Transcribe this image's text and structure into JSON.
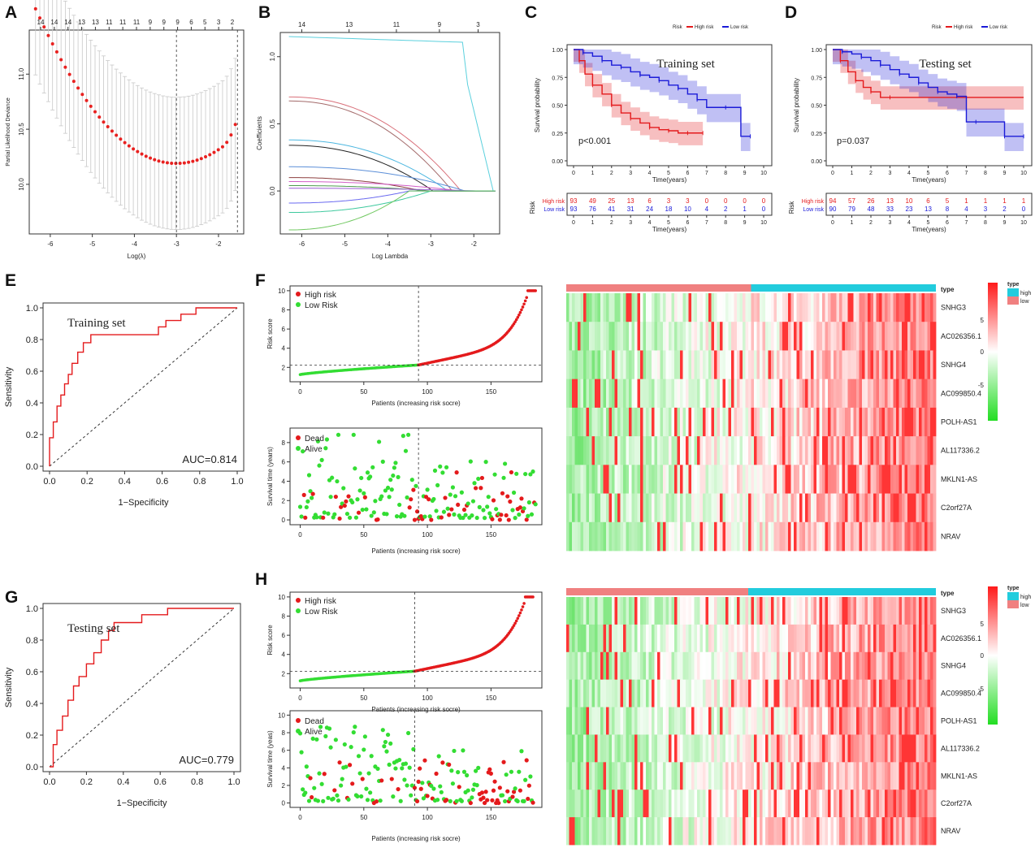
{
  "figure": {
    "panel_labels": [
      "A",
      "B",
      "C",
      "D",
      "E",
      "F",
      "G",
      "H"
    ]
  },
  "chart_data": [
    {
      "id": "A",
      "type": "scatter",
      "xlabel": "Log(λ)",
      "ylabel": "Partial Likelihood Deviance",
      "xlim": [
        -6.5,
        -1.4
      ],
      "ylim": [
        9.55,
        11.4
      ],
      "xticks": [
        -6,
        -5,
        -4,
        -3,
        -2
      ],
      "yticks": [
        10.0,
        10.5,
        11.0
      ],
      "top_ticks": [
        "14",
        "14",
        "14",
        "13",
        "13",
        "11",
        "11",
        "11",
        "9",
        "9",
        "9",
        "6",
        "5",
        "3",
        "2"
      ],
      "vlines": [
        -3.0,
        -1.55
      ],
      "series": [
        {
          "name": "mean deviance",
          "color": "#e8201f"
        }
      ],
      "note": "red dots with grey error bars, U-shaped curve min ≈10.19 at log(λ)≈-3"
    },
    {
      "id": "B",
      "type": "line",
      "xlabel": "Log Lambda",
      "ylabel": "Coefficients",
      "xlim": [
        -6.5,
        -1.4
      ],
      "ylim": [
        -0.32,
        1.18
      ],
      "xticks": [
        -6,
        -5,
        -4,
        -3,
        -2
      ],
      "yticks": [
        0.0,
        0.5,
        1.0
      ],
      "top_ticks": [
        "14",
        "13",
        "11",
        "9",
        "3"
      ],
      "series": [
        {
          "name": "c1",
          "color": "#5bd0dd",
          "start": 1.15
        },
        {
          "name": "c2",
          "color": "#d9707a",
          "start": 0.7
        },
        {
          "name": "c3",
          "color": "#a36a6a",
          "start": 0.67
        },
        {
          "name": "c4",
          "color": "#4db7e0",
          "start": 0.38
        },
        {
          "name": "c5",
          "color": "#222222",
          "start": 0.34
        },
        {
          "name": "c6",
          "color": "#5c8fd8",
          "start": 0.18
        },
        {
          "name": "c7",
          "color": "#8d3f3f",
          "start": 0.1
        },
        {
          "name": "c8",
          "color": "#d25ec7",
          "start": 0.07
        },
        {
          "name": "c9",
          "color": "#4d9a4d",
          "start": 0.04
        },
        {
          "name": "c10",
          "color": "#9a5fd4",
          "start": 0.02
        },
        {
          "name": "c11",
          "color": "#6a6af0",
          "start": -0.09
        },
        {
          "name": "c12",
          "color": "#3ec99e",
          "start": -0.16
        },
        {
          "name": "c13",
          "color": "#70c860",
          "start": -0.29
        }
      ]
    },
    {
      "id": "C",
      "type": "line",
      "title": "Training set",
      "legend_title": "Risk",
      "legend": [
        "High risk",
        "Low risk"
      ],
      "xlabel": "Time(years)",
      "ylabel": "Survival probability",
      "xticks": [
        "0",
        "1",
        "2",
        "3",
        "4",
        "5",
        "6",
        "7",
        "8",
        "9",
        "10"
      ],
      "yticks": [
        "0.00",
        "0.25",
        "0.50",
        "0.75",
        "1.00"
      ],
      "pvalue": "p<0.001",
      "series": [
        {
          "name": "High risk",
          "color": "#e41a1c",
          "x": [
            0,
            0.3,
            0.6,
            1,
            1.5,
            2,
            2.5,
            3,
            3.5,
            4,
            4.5,
            5,
            5.5,
            6,
            6.5,
            6.8
          ],
          "y": [
            1,
            0.9,
            0.78,
            0.68,
            0.6,
            0.5,
            0.43,
            0.38,
            0.34,
            0.3,
            0.28,
            0.27,
            0.25,
            0.25,
            0.25,
            0.25
          ]
        },
        {
          "name": "Low risk",
          "color": "#1b1bd8",
          "x": [
            0,
            0.5,
            1,
            1.5,
            2,
            2.5,
            3,
            3.5,
            4,
            4.5,
            5,
            5.5,
            6,
            6.5,
            7,
            8,
            8.8,
            9.3
          ],
          "y": [
            1,
            0.97,
            0.94,
            0.9,
            0.86,
            0.84,
            0.8,
            0.77,
            0.75,
            0.72,
            0.68,
            0.65,
            0.6,
            0.55,
            0.48,
            0.48,
            0.22,
            0.22
          ]
        }
      ],
      "risk_table": {
        "label": "Risk",
        "xlabel": "Time(years)",
        "rows": [
          {
            "name": "High risk",
            "color": "#e41a1c",
            "values": [
              "93",
              "49",
              "25",
              "13",
              "6",
              "3",
              "3",
              "0",
              "0",
              "0",
              "0"
            ]
          },
          {
            "name": "Low risk",
            "color": "#1b1bd8",
            "values": [
              "93",
              "76",
              "41",
              "31",
              "24",
              "18",
              "10",
              "4",
              "2",
              "1",
              "0"
            ]
          }
        ]
      }
    },
    {
      "id": "D",
      "type": "line",
      "title": "Testing set",
      "legend_title": "Risk",
      "legend": [
        "High risk",
        "Low risk"
      ],
      "xlabel": "Time(years)",
      "ylabel": "Survival probability",
      "xticks": [
        "0",
        "1",
        "2",
        "3",
        "4",
        "5",
        "6",
        "7",
        "8",
        "9",
        "10"
      ],
      "yticks": [
        "0.00",
        "0.25",
        "0.50",
        "0.75",
        "1.00"
      ],
      "pvalue": "p=0.037",
      "series": [
        {
          "name": "High risk",
          "color": "#e41a1c",
          "x": [
            0,
            0.4,
            0.8,
            1.2,
            1.6,
            2,
            2.5,
            3,
            10
          ],
          "y": [
            1,
            0.9,
            0.8,
            0.72,
            0.66,
            0.62,
            0.57,
            0.57,
            0.57
          ]
        },
        {
          "name": "Low risk",
          "color": "#1b1bd8",
          "x": [
            0,
            0.5,
            1,
            1.5,
            2,
            2.5,
            3,
            3.5,
            4,
            4.5,
            5,
            5.5,
            6,
            6.5,
            7,
            7.5,
            8,
            9,
            9.5,
            10
          ],
          "y": [
            1,
            0.98,
            0.96,
            0.93,
            0.9,
            0.86,
            0.82,
            0.78,
            0.75,
            0.7,
            0.66,
            0.62,
            0.6,
            0.58,
            0.35,
            0.35,
            0.35,
            0.22,
            0.22,
            0.22
          ]
        }
      ],
      "risk_table": {
        "label": "Risk",
        "xlabel": "Time(years)",
        "rows": [
          {
            "name": "High risk",
            "color": "#e41a1c",
            "values": [
              "94",
              "57",
              "26",
              "13",
              "10",
              "6",
              "5",
              "1",
              "1",
              "1",
              "1"
            ]
          },
          {
            "name": "Low risk",
            "color": "#1b1bd8",
            "values": [
              "90",
              "79",
              "48",
              "33",
              "23",
              "13",
              "8",
              "4",
              "3",
              "2",
              "0"
            ]
          }
        ]
      }
    },
    {
      "id": "E",
      "type": "line",
      "title": "Training set",
      "auc": "AUC=0.814",
      "xlabel": "1−Specificity",
      "ylabel": "Sensitivity",
      "ticks": [
        "0.0",
        "0.2",
        "0.4",
        "0.6",
        "0.8",
        "1.0"
      ],
      "x": [
        0,
        0,
        0.02,
        0.02,
        0.04,
        0.04,
        0.06,
        0.06,
        0.08,
        0.08,
        0.1,
        0.1,
        0.12,
        0.12,
        0.15,
        0.15,
        0.18,
        0.18,
        0.22,
        0.22,
        0.58,
        0.58,
        0.62,
        0.62,
        0.7,
        0.7,
        0.78,
        0.78,
        1.0
      ],
      "y": [
        0,
        0.18,
        0.18,
        0.28,
        0.28,
        0.38,
        0.38,
        0.45,
        0.45,
        0.52,
        0.52,
        0.58,
        0.58,
        0.65,
        0.65,
        0.72,
        0.72,
        0.78,
        0.78,
        0.83,
        0.83,
        0.88,
        0.88,
        0.92,
        0.92,
        0.96,
        0.96,
        1.0,
        1.0
      ]
    },
    {
      "id": "G",
      "type": "line",
      "title": "Testing set",
      "auc": "AUC=0.779",
      "xlabel": "1−Specificity",
      "ylabel": "Sensitivity",
      "ticks": [
        "0.0",
        "0.2",
        "0.4",
        "0.6",
        "0.8",
        "1.0"
      ],
      "x": [
        0,
        0.02,
        0.02,
        0.04,
        0.04,
        0.07,
        0.07,
        0.1,
        0.1,
        0.13,
        0.13,
        0.16,
        0.16,
        0.2,
        0.2,
        0.24,
        0.24,
        0.28,
        0.28,
        0.32,
        0.32,
        0.35,
        0.35,
        0.5,
        0.5,
        0.64,
        0.64,
        1.0
      ],
      "y": [
        0,
        0,
        0.14,
        0.14,
        0.23,
        0.23,
        0.32,
        0.32,
        0.42,
        0.42,
        0.51,
        0.51,
        0.57,
        0.57,
        0.65,
        0.65,
        0.72,
        0.72,
        0.8,
        0.8,
        0.86,
        0.86,
        0.91,
        0.91,
        0.96,
        0.96,
        1.0,
        1.0
      ]
    },
    {
      "id": "F-risk",
      "type": "scatter",
      "xlabel": "Patients (increasing risk socre)",
      "ylabel": "Risk score",
      "xlim": [
        -8,
        190
      ],
      "ylim": [
        0.5,
        10.5
      ],
      "xticks": [
        0,
        50,
        100,
        150
      ],
      "yticks": [
        2,
        4,
        6,
        8,
        10
      ],
      "n": 186,
      "cutoff_index": 93,
      "cutoff_value": 2.25,
      "legend": [
        "High risk",
        "Low Risk"
      ],
      "colors": [
        "#e41a1c",
        "#33dd33"
      ]
    },
    {
      "id": "F-surv",
      "type": "scatter",
      "xlabel": "Patients (increasing risk socre)",
      "ylabel": "Survival time (years)",
      "xlim": [
        -8,
        190
      ],
      "ylim": [
        -0.5,
        9.5
      ],
      "xticks": [
        0,
        50,
        100,
        150
      ],
      "yticks": [
        0,
        2,
        4,
        6,
        8
      ],
      "n": 186,
      "cutoff_index": 93,
      "legend": [
        "Dead",
        "Alive"
      ],
      "colors": [
        "#e41a1c",
        "#33dd33"
      ]
    },
    {
      "id": "H-risk",
      "type": "scatter",
      "xlabel": "Patients (increasing risk socre)",
      "ylabel": "Risk score",
      "xlim": [
        -8,
        190
      ],
      "ylim": [
        0.5,
        10.5
      ],
      "xticks": [
        0,
        50,
        100,
        150
      ],
      "yticks": [
        2,
        4,
        6,
        8,
        10
      ],
      "n": 184,
      "cutoff_index": 90,
      "cutoff_value": 2.25,
      "legend": [
        "High risk",
        "Low Risk"
      ],
      "colors": [
        "#e41a1c",
        "#33dd33"
      ]
    },
    {
      "id": "H-surv",
      "type": "scatter",
      "xlabel": "Patients (increasing risk socre)",
      "ylabel": "Survival time (yeas)",
      "xlim": [
        -8,
        190
      ],
      "ylim": [
        -0.5,
        10.5
      ],
      "xticks": [
        0,
        50,
        100,
        150
      ],
      "yticks": [
        0,
        2,
        4,
        6,
        8,
        10
      ],
      "n": 184,
      "cutoff_index": 90,
      "legend": [
        "Dead",
        "Alive"
      ],
      "colors": [
        "#e41a1c",
        "#33dd33"
      ]
    },
    {
      "id": "F-heatmap",
      "type": "heatmap",
      "genes": [
        "SNHG3",
        "AC026356.1",
        "SNHG4",
        "AC099850.4",
        "POLH-AS1",
        "AL117336.2",
        "MKLN1-AS",
        "C2orf27A",
        "NRAV"
      ],
      "annotation_label": "type",
      "annotation_split": 0.5,
      "legend_title": "type",
      "legend": [
        "high",
        "low"
      ],
      "legend_colors": [
        "#22ccdd",
        "#f08080"
      ],
      "scale_ticks": [
        "5",
        "0",
        "-5"
      ],
      "scale_colors": [
        "#ff1a1a",
        "#ffffff",
        "#22dd22"
      ]
    },
    {
      "id": "H-heatmap",
      "type": "heatmap",
      "genes": [
        "SNHG3",
        "AC026356.1",
        "SNHG4",
        "AC099850.4",
        "POLH-AS1",
        "AL117336.2",
        "MKLN1-AS",
        "C2orf27A",
        "NRAV"
      ],
      "annotation_label": "type",
      "annotation_split": 0.49,
      "legend_title": "type",
      "legend": [
        "high",
        "low"
      ],
      "legend_colors": [
        "#22ccdd",
        "#f08080"
      ],
      "scale_ticks": [
        "5",
        "0",
        "-5"
      ],
      "scale_colors": [
        "#ff1a1a",
        "#ffffff",
        "#22dd22"
      ]
    }
  ]
}
